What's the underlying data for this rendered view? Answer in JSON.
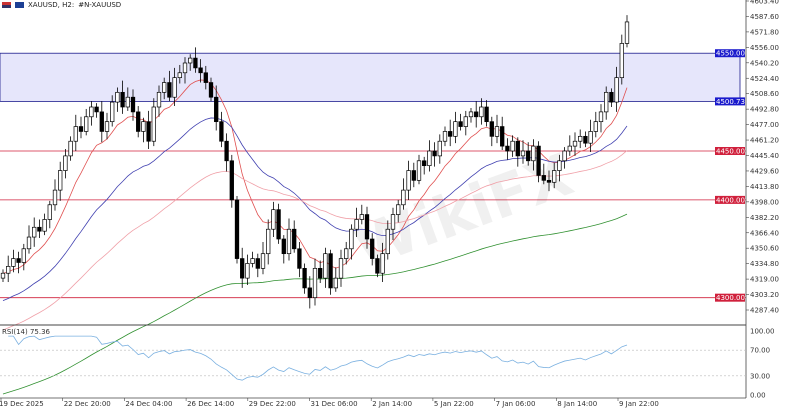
{
  "header": {
    "symbol": "XAUUSD, H2:",
    "description": "#N-XAUUSD"
  },
  "colors": {
    "bull": "#000000",
    "bear": "#000000",
    "zone": "#e6e6fb",
    "zone_border": "#1a1a8c",
    "level": "#d0203c",
    "ma_fast": "#e05050",
    "ma_mid": "#4040b0",
    "ma_slow": "#f0a0a8",
    "ma_long": "#309030",
    "rsi": "#7ab0e0"
  },
  "price_axis": {
    "labels": [
      "4603.40",
      "4587.60",
      "4571.80",
      "4556.00",
      "4540.20",
      "4524.40",
      "4508.60",
      "4492.80",
      "4477.00",
      "4461.20",
      "4445.40",
      "4429.60",
      "4413.80",
      "4398.00",
      "4382.20",
      "4366.40",
      "4350.60",
      "4334.80",
      "4319.00",
      "4303.20",
      "4287.40"
    ],
    "min": 4287.4,
    "max": 4603.4
  },
  "levels": [
    {
      "price": 4550.0,
      "label": "4550.00",
      "type": "zone"
    },
    {
      "price": 4500.73,
      "label": "4500.73",
      "type": "zone"
    },
    {
      "price": 4450.0,
      "label": "4450.00",
      "type": "level"
    },
    {
      "price": 4400.0,
      "label": "4400.00",
      "type": "level"
    },
    {
      "price": 4300.0,
      "label": "4300.00",
      "type": "level"
    }
  ],
  "rsi": {
    "label": "RSI(14) 75.36",
    "axis": [
      "100.00",
      "70.00",
      "30.00",
      "0.00"
    ]
  },
  "time_axis": [
    "19 Dec 2025",
    "22 Dec 20:00",
    "24 Dec 04:00",
    "26 Dec 14:00",
    "29 Dec 22:00",
    "31 Dec 06:00",
    "2 Jan 14:00",
    "5 Jan 22:00",
    "7 Jan 06:00",
    "8 Jan 14:00",
    "9 Jan 22:00"
  ],
  "watermark": "WikiFX",
  "closes": [
    4325,
    4332,
    4340,
    4336,
    4350,
    4362,
    4372,
    4368,
    4380,
    4395,
    4410,
    4430,
    4445,
    4460,
    4475,
    4470,
    4485,
    4495,
    4490,
    4470,
    4480,
    4500,
    4510,
    4495,
    4505,
    4490,
    4470,
    4480,
    4460,
    4495,
    4510,
    4520,
    4505,
    4525,
    4530,
    4540,
    4545,
    4535,
    4530,
    4520,
    4505,
    4480,
    4460,
    4440,
    4400,
    4340,
    4320,
    4335,
    4340,
    4330,
    4345,
    4370,
    4390,
    4360,
    4345,
    4370,
    4350,
    4330,
    4310,
    4300,
    4330,
    4320,
    4345,
    4310,
    4320,
    4340,
    4350,
    4370,
    4380,
    4385,
    4360,
    4340,
    4325,
    4345,
    4370,
    4385,
    4395,
    4410,
    4430,
    4420,
    4440,
    4435,
    4450,
    4445,
    4460,
    4470,
    4465,
    4480,
    4475,
    4485,
    4490,
    4485,
    4495,
    4480,
    4465,
    4475,
    4455,
    4450,
    4460,
    4445,
    4450,
    4440,
    4455,
    4425,
    4420,
    4418,
    4430,
    4440,
    4450,
    4455,
    4460,
    4465,
    4458,
    4470,
    4480,
    4490,
    4510,
    4500,
    4525,
    4560,
    4582
  ]
}
